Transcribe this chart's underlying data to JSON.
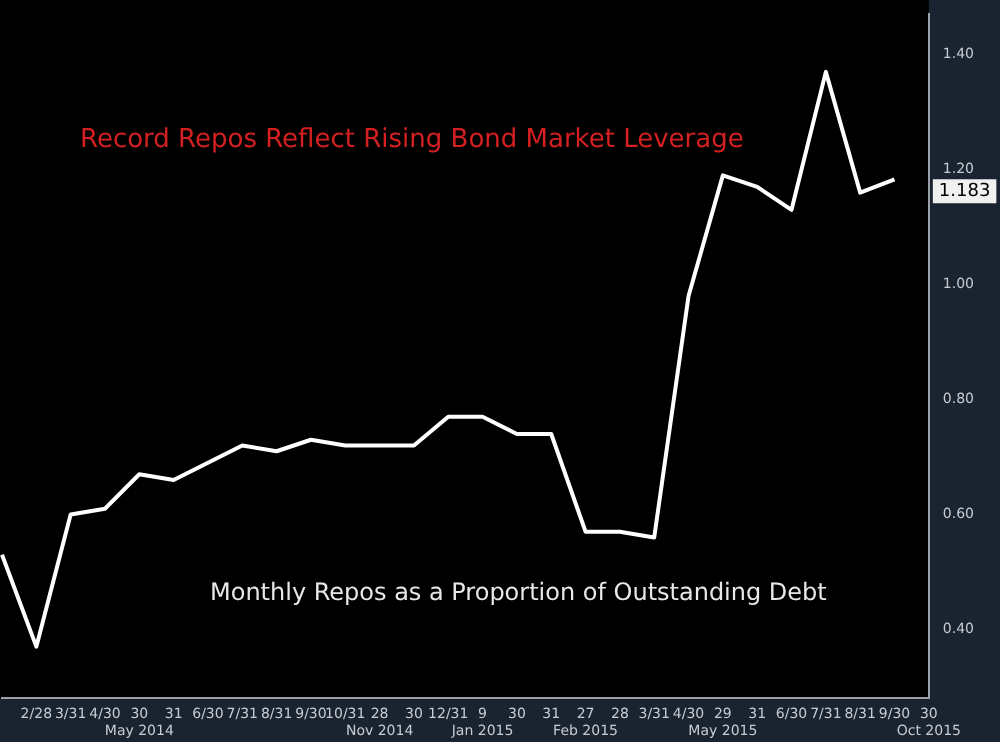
{
  "chart_data": {
    "type": "line",
    "title": "Record Repos Reflect Rising Bond Market Leverage",
    "subtitle": "Monthly Repos as a Proportion of Outstanding Debt",
    "categories": [
      null,
      "2/28",
      "3/31",
      "4/30",
      "30\nMay 2014",
      "31",
      "6/30",
      "7/31",
      "8/31",
      "9/30",
      "10/31",
      "28\nNov 2014",
      "30",
      "12/31",
      "9\nJan 2015",
      "30",
      "31",
      "27\nFeb 2015",
      "28",
      "3/31",
      "4/30",
      "29\nMay 2015",
      "31",
      "6/30",
      "7/31",
      "8/31",
      "9/30",
      "30\nOct 2015"
    ],
    "series": [
      {
        "color": "#ffffff",
        "values": [
          0.53,
          0.37,
          0.6,
          0.61,
          0.67,
          0.66,
          0.69,
          0.72,
          0.71,
          0.73,
          0.72,
          0.72,
          0.72,
          0.77,
          0.77,
          0.74,
          0.74,
          0.57,
          0.57,
          0.56,
          0.98,
          1.19,
          1.17,
          1.13,
          1.37,
          1.16,
          1.183,
          null
        ]
      }
    ],
    "ylim": [
      0.28,
      1.47
    ],
    "yticks": [
      {
        "value": 0.4,
        "label": "0.40"
      },
      {
        "value": 0.6,
        "label": "0.60"
      },
      {
        "value": 0.8,
        "label": "0.80"
      },
      {
        "value": 1.0,
        "label": "1.00"
      },
      {
        "value": 1.2,
        "label": "1.20"
      },
      {
        "value": 1.4,
        "label": "1.40"
      }
    ],
    "annotations": [
      "1.183"
    ],
    "grid": false,
    "legend": false,
    "marker": "none",
    "line_style": "solid"
  }
}
